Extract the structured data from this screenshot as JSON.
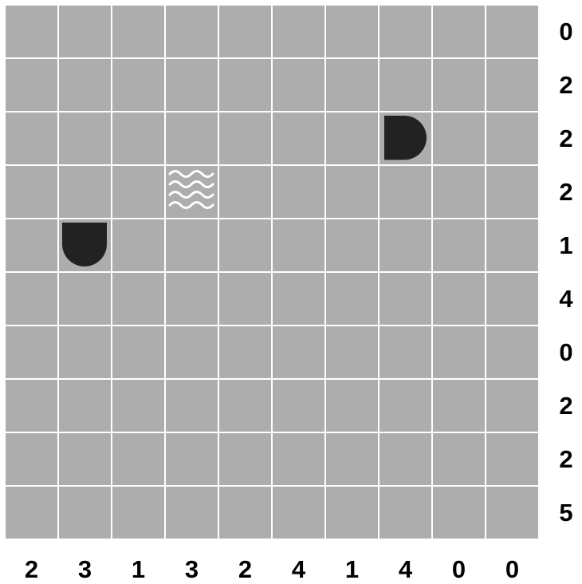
{
  "puzzle": {
    "rows": 10,
    "cols": 10,
    "row_clues": [
      "0",
      "2",
      "2",
      "2",
      "1",
      "4",
      "0",
      "2",
      "2",
      "5"
    ],
    "col_clues": [
      "2",
      "3",
      "1",
      "3",
      "2",
      "4",
      "1",
      "4",
      "0",
      "0"
    ],
    "pieces": [
      {
        "row": 2,
        "col": 7,
        "type": "ship-end-left",
        "icon": "ship-end-left-icon"
      },
      {
        "row": 3,
        "col": 3,
        "type": "water",
        "icon": "water-icon"
      },
      {
        "row": 4,
        "col": 1,
        "type": "ship-end-top",
        "icon": "ship-end-top-icon"
      }
    ]
  },
  "colors": {
    "cell": "#adadad",
    "grid_line": "#ffffff",
    "piece": "#222222",
    "water": "#ffffff",
    "clue_text": "#000000"
  }
}
